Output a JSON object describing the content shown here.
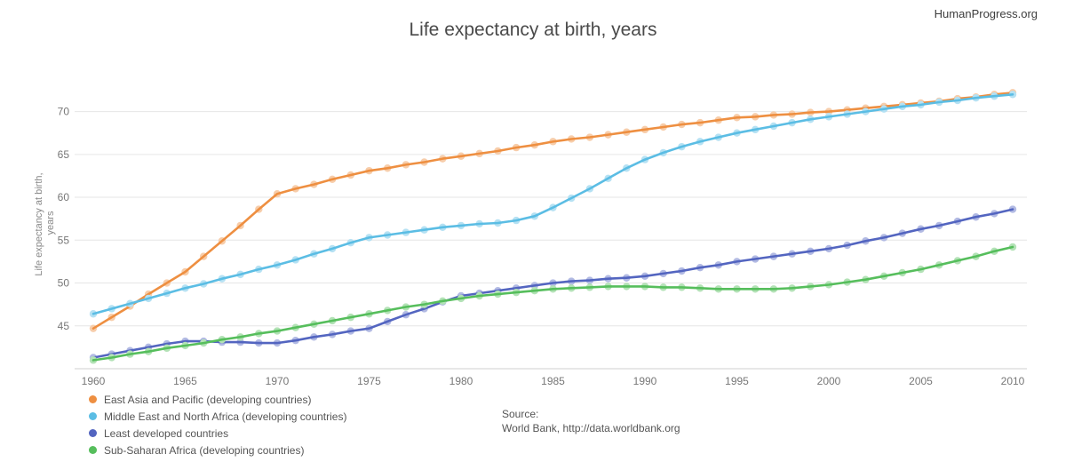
{
  "page": {
    "watermark": "HumanProgress.org",
    "source_label": "Source:",
    "source_line": "World Bank, http://data.worldbank.org"
  },
  "chart_data": {
    "type": "line",
    "title": "Life expectancy at birth, years",
    "ylabel_line1": "Life expectancy at birth,",
    "ylabel_line2": "years",
    "x_start": 1960,
    "x_end": 2010,
    "xticks": [
      1960,
      1965,
      1970,
      1975,
      1980,
      1985,
      1990,
      1995,
      2000,
      2005,
      2010
    ],
    "yticks": [
      45,
      50,
      55,
      60,
      65,
      70
    ],
    "ylim": [
      40,
      74
    ],
    "grid": "horizontal",
    "legend_position": "bottom-left",
    "colors": {
      "east_asia": "#EE8F41",
      "mena": "#5BBDE4",
      "least_developed": "#5365C0",
      "sub_saharan": "#56BE5C"
    },
    "series": [
      {
        "name": "East Asia and Pacific (developing countries)",
        "color": "#EE8F41",
        "values": [
          44.7,
          46.0,
          47.3,
          48.7,
          50.0,
          51.3,
          53.1,
          54.9,
          56.7,
          58.6,
          60.4,
          61.0,
          61.5,
          62.1,
          62.6,
          63.1,
          63.4,
          63.8,
          64.1,
          64.5,
          64.8,
          65.1,
          65.4,
          65.8,
          66.1,
          66.5,
          66.8,
          67.0,
          67.3,
          67.6,
          67.9,
          68.2,
          68.5,
          68.7,
          69.0,
          69.3,
          69.4,
          69.6,
          69.7,
          69.9,
          70.0,
          70.2,
          70.4,
          70.6,
          70.8,
          71.0,
          71.2,
          71.5,
          71.7,
          72.0,
          72.2
        ]
      },
      {
        "name": "Middle East and North Africa (developing countries)",
        "color": "#5BBDE4",
        "values": [
          46.4,
          47.0,
          47.6,
          48.2,
          48.8,
          49.4,
          49.9,
          50.5,
          51.0,
          51.6,
          52.1,
          52.7,
          53.4,
          54.0,
          54.7,
          55.3,
          55.6,
          55.9,
          56.2,
          56.5,
          56.7,
          56.9,
          57.0,
          57.3,
          57.8,
          58.8,
          59.9,
          61.0,
          62.2,
          63.4,
          64.4,
          65.2,
          65.9,
          66.5,
          67.0,
          67.5,
          67.9,
          68.3,
          68.7,
          69.1,
          69.4,
          69.7,
          70.0,
          70.3,
          70.6,
          70.8,
          71.1,
          71.3,
          71.6,
          71.8,
          72.0
        ]
      },
      {
        "name": "Least developed countries",
        "color": "#5365C0",
        "values": [
          41.3,
          41.7,
          42.1,
          42.5,
          42.9,
          43.2,
          43.2,
          43.1,
          43.1,
          43.0,
          43.0,
          43.3,
          43.7,
          44.0,
          44.4,
          44.7,
          45.5,
          46.3,
          47.0,
          47.8,
          48.5,
          48.8,
          49.1,
          49.4,
          49.7,
          50.0,
          50.2,
          50.3,
          50.5,
          50.6,
          50.8,
          51.1,
          51.4,
          51.8,
          52.1,
          52.5,
          52.8,
          53.1,
          53.4,
          53.7,
          54.0,
          54.4,
          54.9,
          55.3,
          55.8,
          56.3,
          56.7,
          57.2,
          57.7,
          58.1,
          58.6
        ]
      },
      {
        "name": "Sub-Saharan Africa (developing countries)",
        "color": "#56BE5C",
        "values": [
          41.0,
          41.3,
          41.7,
          42.0,
          42.4,
          42.7,
          43.0,
          43.4,
          43.7,
          44.1,
          44.4,
          44.8,
          45.2,
          45.6,
          46.0,
          46.4,
          46.8,
          47.2,
          47.5,
          47.9,
          48.2,
          48.5,
          48.7,
          48.9,
          49.1,
          49.3,
          49.4,
          49.5,
          49.6,
          49.6,
          49.6,
          49.5,
          49.5,
          49.4,
          49.3,
          49.3,
          49.3,
          49.3,
          49.4,
          49.6,
          49.8,
          50.1,
          50.4,
          50.8,
          51.2,
          51.6,
          52.1,
          52.6,
          53.1,
          53.7,
          54.2
        ]
      }
    ]
  }
}
